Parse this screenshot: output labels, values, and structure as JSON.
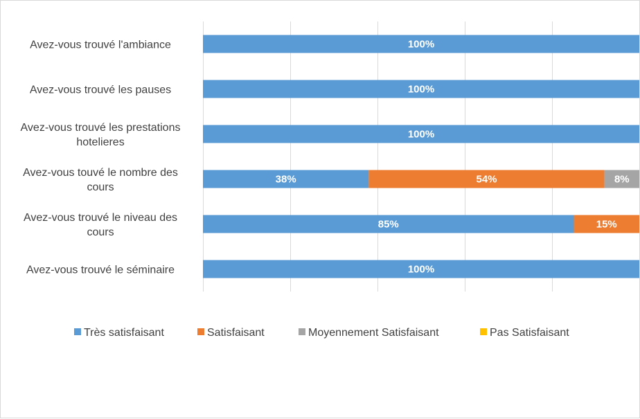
{
  "chart_data": {
    "type": "bar",
    "orientation": "horizontal",
    "stacked": true,
    "percent_stacked": true,
    "categories": [
      "Avez-vous trouvé l'ambiance",
      "Avez-vous trouvé les pauses",
      "Avez-vous trouvé les prestations hotelieres",
      "Avez-vous touvé le nombre des cours",
      "Avez-vous trouvé le niveau des cours",
      "Avez-vous trouvé le séminaire"
    ],
    "series": [
      {
        "name": "Très satisfaisant",
        "color": "#5b9bd5",
        "values": [
          100,
          100,
          100,
          38,
          85,
          100
        ]
      },
      {
        "name": "Satisfaisant",
        "color": "#ed7d31",
        "values": [
          0,
          0,
          0,
          54,
          15,
          0
        ]
      },
      {
        "name": "Moyennement Satisfaisant",
        "color": "#a5a5a5",
        "values": [
          0,
          0,
          0,
          8,
          0,
          0
        ]
      },
      {
        "name": "Pas Satisfaisant",
        "color": "#ffc000",
        "values": [
          0,
          0,
          0,
          0,
          0,
          0
        ]
      }
    ],
    "value_suffix": "%",
    "xlim": [
      0,
      100
    ],
    "grid": true,
    "legend_position": "bottom"
  }
}
